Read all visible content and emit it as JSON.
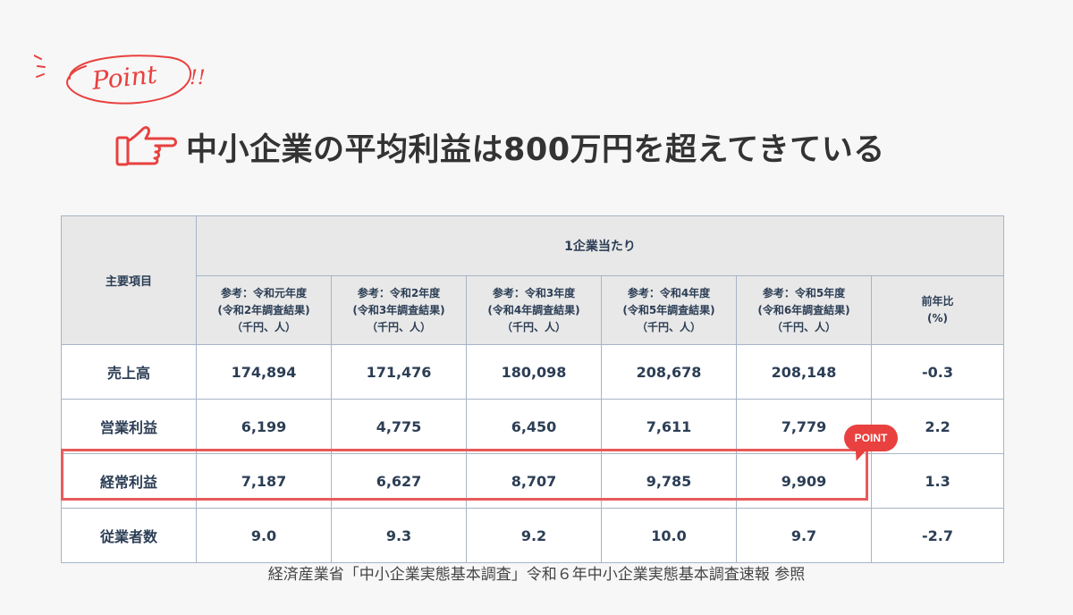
{
  "badge": {
    "text": "Point",
    "exclaim": "!!"
  },
  "title": "中小企業の平均利益は800万円を超えてきている",
  "table": {
    "item_header": "主要項目",
    "group_header": "1企業当たり",
    "columns": [
      {
        "line1": "参考：令和元年度",
        "line2": "(令和2年調査結果)",
        "line3": "（千円、人）"
      },
      {
        "line1": "参考：令和2年度",
        "line2": "(令和3年調査結果)",
        "line3": "（千円、人）"
      },
      {
        "line1": "参考：令和3年度",
        "line2": "(令和4年調査結果)",
        "line3": "（千円、人）"
      },
      {
        "line1": "参考：令和4年度",
        "line2": "(令和5年調査結果)",
        "line3": "（千円、人）"
      },
      {
        "line1": "参考：令和5年度",
        "line2": "(令和6年調査結果)",
        "line3": "（千円、人）"
      }
    ],
    "yoy_header": {
      "line1": "前年比",
      "line2": "(%)"
    },
    "rows": [
      {
        "label": "売上高",
        "values": [
          "174,894",
          "171,476",
          "180,098",
          "208,678",
          "208,148"
        ],
        "yoy": "-0.3"
      },
      {
        "label": "営業利益",
        "values": [
          "6,199",
          "4,775",
          "6,450",
          "7,611",
          "7,779"
        ],
        "yoy": "2.2"
      },
      {
        "label": "経常利益",
        "values": [
          "7,187",
          "6,627",
          "8,707",
          "9,785",
          "9,909"
        ],
        "yoy": "1.3"
      },
      {
        "label": "従業者数",
        "values": [
          "9.0",
          "9.3",
          "9.2",
          "10.0",
          "9.7"
        ],
        "yoy": "-2.7"
      }
    ]
  },
  "point_tag": "POINT",
  "source": "経済産業省「中小企業実態基本調査」令和６年中小企業実態基本調査速報 参照",
  "colors": {
    "accent": "#e8413f",
    "border": "#a7b5c6",
    "header_bg": "#e8e8e8",
    "text": "#2c3e55"
  }
}
